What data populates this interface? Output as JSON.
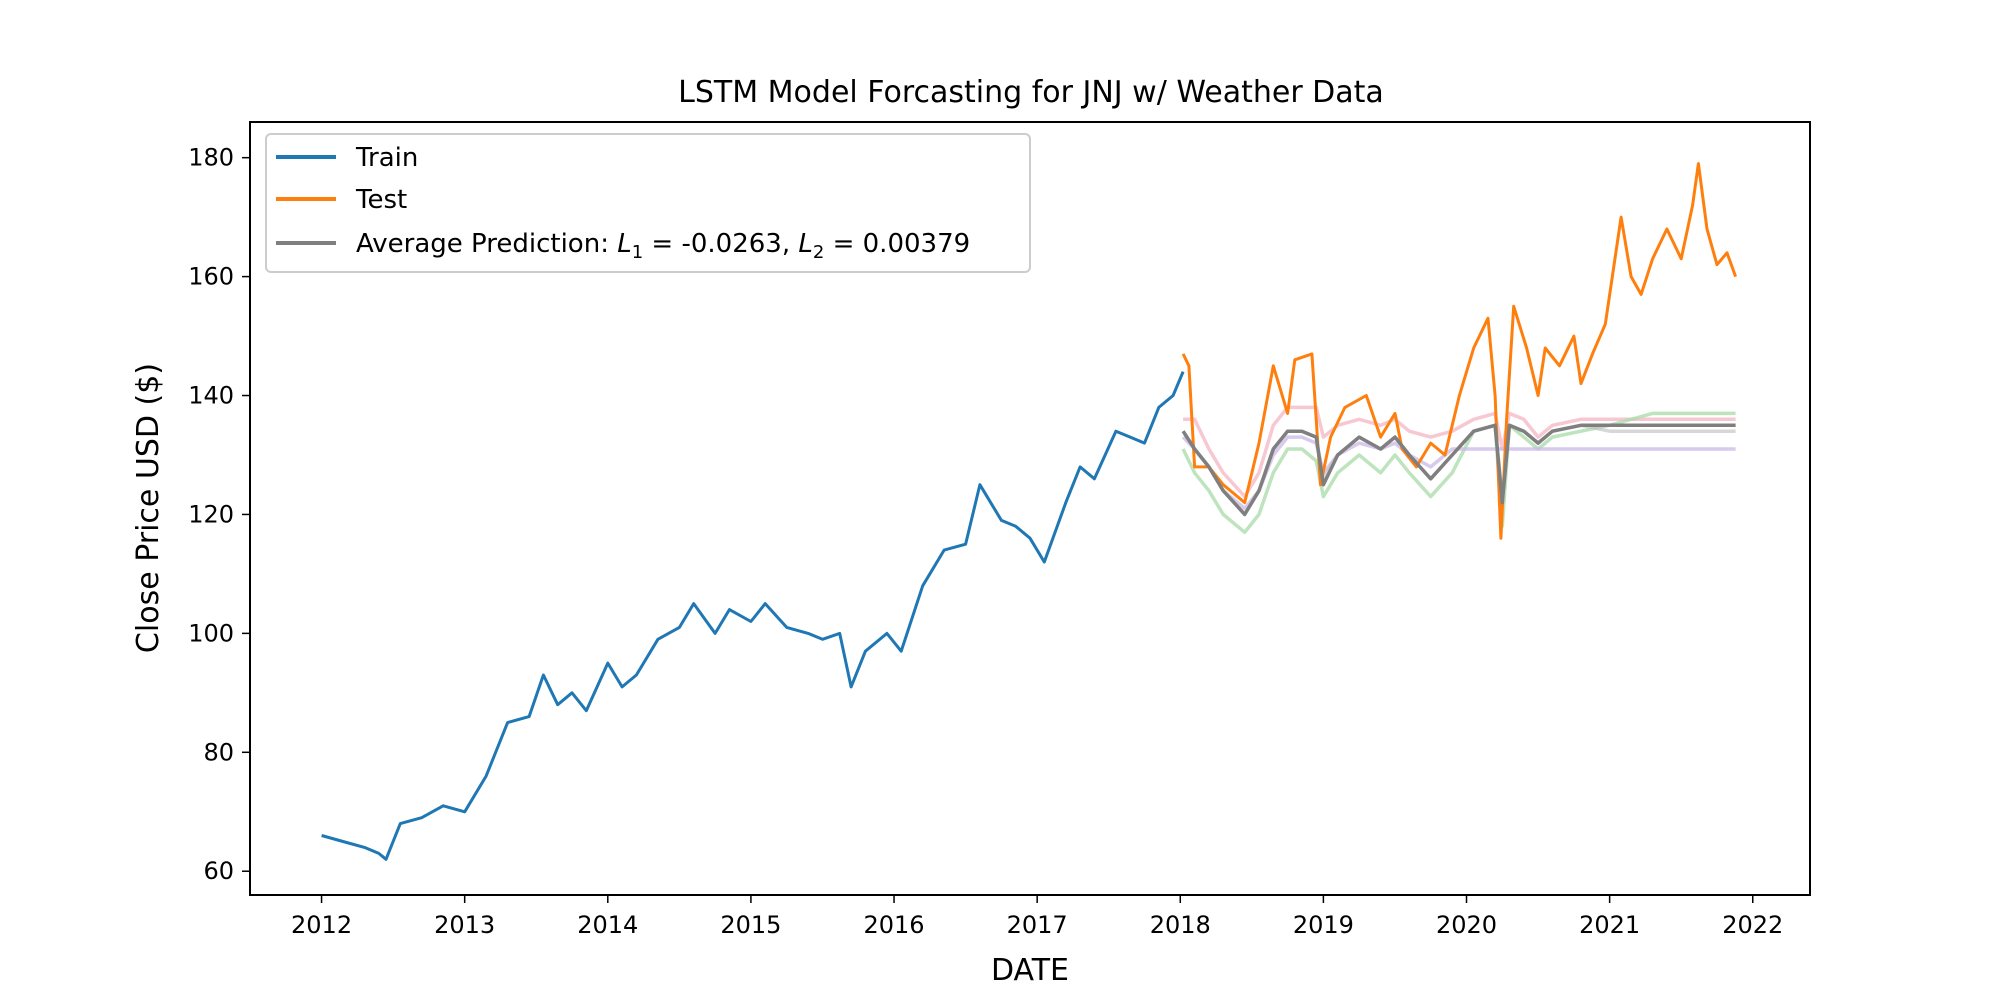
{
  "chart_data": {
    "type": "line",
    "title": "LSTM Model Forcasting for JNJ w/ Weather Data",
    "xlabel": "DATE",
    "ylabel": "Close Price USD ($)",
    "xlim": [
      2011.5,
      2022.4
    ],
    "ylim": [
      56,
      186
    ],
    "x_ticks": [
      "2012",
      "2013",
      "2014",
      "2015",
      "2016",
      "2017",
      "2018",
      "2019",
      "2020",
      "2021",
      "2022"
    ],
    "y_ticks": [
      "60",
      "80",
      "100",
      "120",
      "140",
      "160",
      "180"
    ],
    "grid": false,
    "legend_position": "top-left",
    "legend": {
      "train": "Train",
      "test": "Test",
      "avg_prefix": "Average Prediction: ",
      "l1_symbol": "L",
      "l1_sub": "1",
      "l1_value": " = -0.0263, ",
      "l2_symbol": "L",
      "l2_sub": "2",
      "l2_value": " = 0.00379"
    },
    "colors": {
      "train": "#1f77b4",
      "test": "#ff7f0e",
      "average": "#7f7f7f",
      "model_pink": "#f4b6c2",
      "model_green": "#a8dba8",
      "model_purple": "#c9b8e6",
      "model_gray": "#bdbdbd"
    },
    "series": [
      {
        "name": "Train",
        "key": "train",
        "x": [
          2012.0,
          2012.15,
          2012.3,
          2012.4,
          2012.45,
          2012.55,
          2012.7,
          2012.85,
          2013.0,
          2013.15,
          2013.3,
          2013.45,
          2013.55,
          2013.65,
          2013.75,
          2013.85,
          2014.0,
          2014.1,
          2014.2,
          2014.35,
          2014.5,
          2014.6,
          2014.75,
          2014.85,
          2015.0,
          2015.1,
          2015.25,
          2015.4,
          2015.5,
          2015.62,
          2015.7,
          2015.8,
          2015.95,
          2016.05,
          2016.2,
          2016.35,
          2016.5,
          2016.6,
          2016.75,
          2016.85,
          2016.95,
          2017.05,
          2017.2,
          2017.3,
          2017.4,
          2017.55,
          2017.65,
          2017.75,
          2017.85,
          2017.95,
          2018.02
        ],
        "values": [
          66,
          65,
          64,
          63,
          62,
          68,
          69,
          71,
          70,
          76,
          85,
          86,
          93,
          88,
          90,
          87,
          95,
          91,
          93,
          99,
          101,
          105,
          100,
          104,
          102,
          105,
          101,
          100,
          99,
          100,
          91,
          97,
          100,
          97,
          108,
          114,
          115,
          125,
          119,
          118,
          116,
          112,
          122,
          128,
          126,
          134,
          133,
          132,
          138,
          140,
          144
        ]
      },
      {
        "name": "Test",
        "key": "test",
        "x": [
          2018.02,
          2018.06,
          2018.1,
          2018.2,
          2018.3,
          2018.45,
          2018.55,
          2018.65,
          2018.75,
          2018.8,
          2018.92,
          2018.98,
          2019.05,
          2019.15,
          2019.3,
          2019.4,
          2019.5,
          2019.55,
          2019.65,
          2019.75,
          2019.85,
          2019.95,
          2020.05,
          2020.15,
          2020.2,
          2020.24,
          2020.28,
          2020.33,
          2020.42,
          2020.5,
          2020.55,
          2020.65,
          2020.75,
          2020.8,
          2020.88,
          2020.97,
          2021.08,
          2021.15,
          2021.22,
          2021.3,
          2021.4,
          2021.5,
          2021.58,
          2021.62,
          2021.68,
          2021.75,
          2021.82,
          2021.88
        ],
        "values": [
          147,
          145,
          128,
          128,
          125,
          122,
          132,
          145,
          137,
          146,
          147,
          125,
          133,
          138,
          140,
          133,
          137,
          131,
          128,
          132,
          130,
          140,
          148,
          153,
          140,
          116,
          136,
          155,
          148,
          140,
          148,
          145,
          150,
          142,
          147,
          152,
          170,
          160,
          157,
          163,
          168,
          163,
          172,
          179,
          168,
          162,
          164,
          160
        ]
      },
      {
        "name": "",
        "key": "model_pink",
        "x": [
          2018.02,
          2018.1,
          2018.2,
          2018.3,
          2018.45,
          2018.55,
          2018.65,
          2018.75,
          2018.85,
          2018.95,
          2019.0,
          2019.1,
          2019.25,
          2019.4,
          2019.5,
          2019.6,
          2019.75,
          2019.9,
          2020.05,
          2020.2,
          2020.25,
          2020.3,
          2020.4,
          2020.5,
          2020.6,
          2020.8,
          2021.0,
          2021.3,
          2021.6,
          2021.88
        ],
        "values": [
          136,
          136,
          131,
          127,
          123,
          127,
          135,
          138,
          138,
          138,
          133,
          135,
          136,
          135,
          136,
          134,
          133,
          134,
          136,
          137,
          131,
          137,
          136,
          133,
          135,
          136,
          136,
          136,
          136,
          136
        ]
      },
      {
        "name": "",
        "key": "model_green",
        "x": [
          2018.02,
          2018.1,
          2018.2,
          2018.3,
          2018.45,
          2018.55,
          2018.65,
          2018.75,
          2018.85,
          2018.95,
          2019.0,
          2019.1,
          2019.25,
          2019.4,
          2019.5,
          2019.6,
          2019.75,
          2019.9,
          2020.05,
          2020.2,
          2020.25,
          2020.3,
          2020.4,
          2020.5,
          2020.6,
          2020.8,
          2021.0,
          2021.3,
          2021.6,
          2021.88
        ],
        "values": [
          131,
          127,
          124,
          120,
          117,
          120,
          127,
          131,
          131,
          129,
          123,
          127,
          130,
          127,
          130,
          127,
          123,
          127,
          134,
          135,
          118,
          135,
          133,
          131,
          133,
          134,
          135,
          137,
          137,
          137
        ]
      },
      {
        "name": "",
        "key": "model_purple",
        "x": [
          2018.02,
          2018.1,
          2018.2,
          2018.3,
          2018.45,
          2018.55,
          2018.65,
          2018.75,
          2018.85,
          2018.95,
          2019.0,
          2019.1,
          2019.25,
          2019.4,
          2019.5,
          2019.6,
          2019.75,
          2019.9,
          2020.05,
          2020.2,
          2020.3,
          2020.5,
          2020.8,
          2021.0,
          2021.3,
          2021.6,
          2021.88
        ],
        "values": [
          133,
          131,
          128,
          124,
          121,
          124,
          130,
          133,
          133,
          132,
          127,
          130,
          132,
          131,
          132,
          130,
          128,
          131,
          131,
          131,
          131,
          131,
          131,
          131,
          131,
          131,
          131
        ]
      },
      {
        "name": "",
        "key": "model_gray",
        "x": [
          2018.02,
          2018.1,
          2018.2,
          2018.3,
          2018.45,
          2018.55,
          2018.65,
          2018.75,
          2018.85,
          2018.95,
          2019.0,
          2019.1,
          2019.25,
          2019.4,
          2019.5,
          2019.6,
          2019.75,
          2019.9,
          2020.05,
          2020.2,
          2020.25,
          2020.3,
          2020.4,
          2020.5,
          2020.6,
          2020.8,
          2021.0,
          2021.3,
          2021.6,
          2021.88
        ],
        "values": [
          134,
          131,
          128,
          124,
          120,
          124,
          131,
          134,
          134,
          133,
          126,
          130,
          133,
          131,
          133,
          130,
          126,
          130,
          134,
          135,
          123,
          135,
          134,
          132,
          134,
          135,
          134,
          134,
          134,
          134
        ]
      },
      {
        "name": "Average Prediction",
        "key": "average",
        "x": [
          2018.02,
          2018.1,
          2018.2,
          2018.3,
          2018.45,
          2018.55,
          2018.65,
          2018.75,
          2018.85,
          2018.95,
          2019.0,
          2019.1,
          2019.25,
          2019.4,
          2019.5,
          2019.6,
          2019.75,
          2019.9,
          2020.05,
          2020.2,
          2020.25,
          2020.3,
          2020.4,
          2020.5,
          2020.6,
          2020.8,
          2021.0,
          2021.3,
          2021.6,
          2021.88
        ],
        "values": [
          134,
          131,
          128,
          124,
          120,
          124,
          131,
          134,
          134,
          133,
          125,
          130,
          133,
          131,
          133,
          130,
          126,
          130,
          134,
          135,
          122,
          135,
          134,
          132,
          134,
          135,
          135,
          135,
          135,
          135
        ]
      }
    ]
  }
}
